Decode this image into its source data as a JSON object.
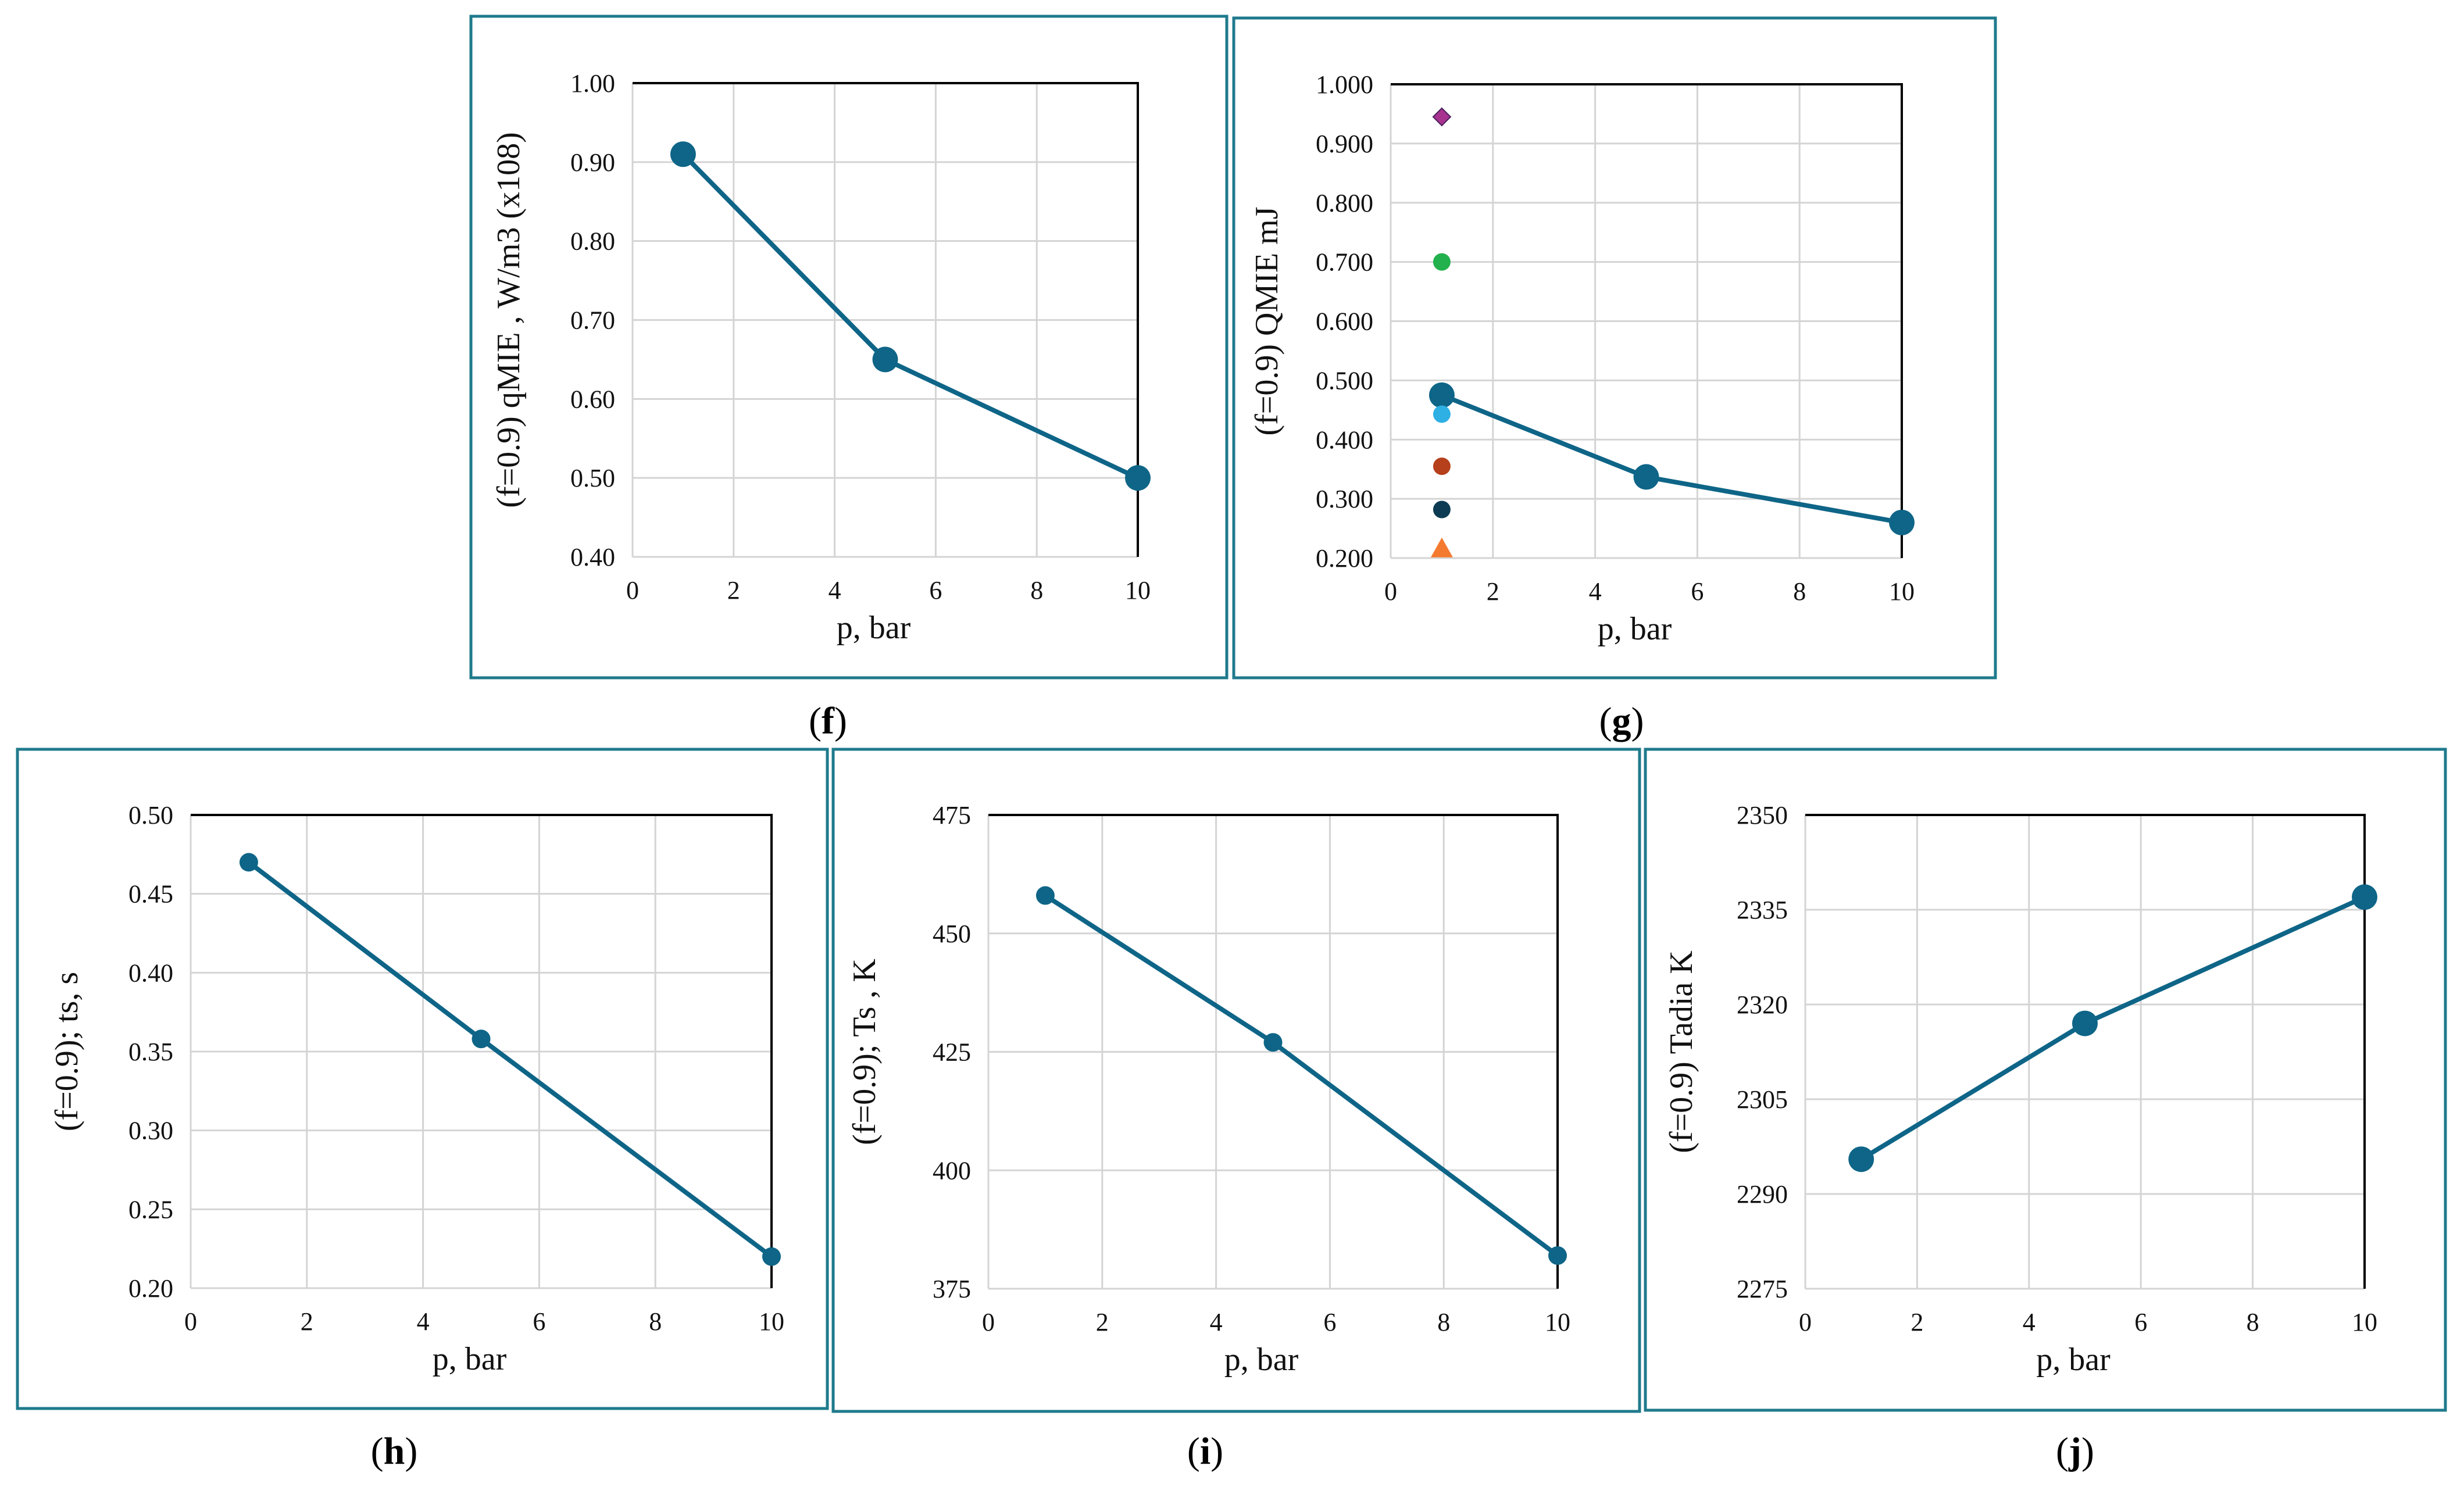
{
  "figure": {
    "series_color": "#0e6587",
    "frame_color": "#1f7a8c"
  },
  "chart_data": [
    {
      "id": "f",
      "type": "line",
      "tag": "f",
      "title": "",
      "xlabel": "p, bar",
      "ylabel": "(f=0.9) qMIE , W/m3 (x108)",
      "xlim": [
        0,
        10
      ],
      "ylim": [
        0.4,
        1.0
      ],
      "xticks": [
        0,
        2,
        4,
        6,
        8,
        10
      ],
      "xtick_labels": [
        "0",
        "2",
        "4",
        "6",
        "8",
        "10"
      ],
      "yticks": [
        0.4,
        0.5,
        0.6,
        0.7,
        0.8,
        0.9,
        1.0
      ],
      "ytick_labels": [
        "0.40",
        "0.50",
        "0.60",
        "0.70",
        "0.80",
        "0.90",
        "1.00"
      ],
      "series": [
        {
          "name": "f=0.9",
          "x": [
            1,
            5,
            10
          ],
          "y": [
            0.91,
            0.65,
            0.5
          ]
        }
      ],
      "extra_points": []
    },
    {
      "id": "g",
      "type": "line",
      "tag": "g",
      "title": "",
      "xlabel": "p, bar",
      "ylabel": "(f=0.9) QMIE  mJ",
      "xlim": [
        0,
        10
      ],
      "ylim": [
        0.2,
        1.0
      ],
      "xticks": [
        0,
        2,
        4,
        6,
        8,
        10
      ],
      "xtick_labels": [
        "0",
        "2",
        "4",
        "6",
        "8",
        "10"
      ],
      "yticks": [
        0.2,
        0.3,
        0.4,
        0.5,
        0.6,
        0.7,
        0.8,
        0.9,
        1.0
      ],
      "ytick_labels": [
        "0.200",
        "0.300",
        "0.400",
        "0.500",
        "0.600",
        "0.700",
        "0.800",
        "0.900",
        "1.000"
      ],
      "series": [
        {
          "name": "f=0.9",
          "x": [
            1,
            5,
            10
          ],
          "y": [
            0.475,
            0.337,
            0.26
          ]
        }
      ],
      "extra_points": [
        {
          "x": 1,
          "y": 0.945,
          "marker": "diamond",
          "color": "#a8328f"
        },
        {
          "x": 1,
          "y": 0.7,
          "marker": "circle",
          "color": "#22b14c"
        },
        {
          "x": 1,
          "y": 0.443,
          "marker": "circle",
          "color": "#2eb0e4"
        },
        {
          "x": 1,
          "y": 0.355,
          "marker": "circle",
          "color": "#b5401b"
        },
        {
          "x": 1,
          "y": 0.282,
          "marker": "circle",
          "color": "#0d3b53"
        },
        {
          "x": 1,
          "y": 0.215,
          "marker": "triangle",
          "color": "#f47a30"
        }
      ]
    },
    {
      "id": "h",
      "type": "line",
      "tag": "h",
      "title": "",
      "xlabel": "p, bar",
      "ylabel": "(f=0.9); ts, s",
      "xlim": [
        0,
        10
      ],
      "ylim": [
        0.2,
        0.5
      ],
      "xticks": [
        0,
        2,
        4,
        6,
        8,
        10
      ],
      "xtick_labels": [
        "0",
        "2",
        "4",
        "6",
        "8",
        "10"
      ],
      "yticks": [
        0.2,
        0.25,
        0.3,
        0.35,
        0.4,
        0.45,
        0.5
      ],
      "ytick_labels": [
        "0.20",
        "0.25",
        "0.30",
        "0.35",
        "0.40",
        "0.45",
        "0.50"
      ],
      "series": [
        {
          "name": "f=0.9",
          "x": [
            1,
            5,
            10
          ],
          "y": [
            0.47,
            0.358,
            0.22
          ]
        }
      ],
      "extra_points": []
    },
    {
      "id": "i",
      "type": "line",
      "tag": "i",
      "title": "",
      "xlabel": "p, bar",
      "ylabel": "(f=0.9);  Ts , K",
      "xlim": [
        0,
        10
      ],
      "ylim": [
        375,
        475
      ],
      "xticks": [
        0,
        2,
        4,
        6,
        8,
        10
      ],
      "xtick_labels": [
        "0",
        "2",
        "4",
        "6",
        "8",
        "10"
      ],
      "yticks": [
        375,
        400,
        425,
        450,
        475
      ],
      "ytick_labels": [
        "375",
        "400",
        "425",
        "450",
        "475"
      ],
      "series": [
        {
          "name": "f=0.9",
          "x": [
            1,
            5,
            10
          ],
          "y": [
            458,
            427,
            382
          ]
        }
      ],
      "extra_points": []
    },
    {
      "id": "j",
      "type": "line",
      "tag": "j",
      "title": "",
      "xlabel": "p, bar",
      "ylabel": "(f=0.9) Tadia K",
      "xlim": [
        0,
        10
      ],
      "ylim": [
        2275,
        2350
      ],
      "xticks": [
        0,
        2,
        4,
        6,
        8,
        10
      ],
      "xtick_labels": [
        "0",
        "2",
        "4",
        "6",
        "8",
        "10"
      ],
      "yticks": [
        2275,
        2290,
        2305,
        2320,
        2335,
        2350
      ],
      "ytick_labels": [
        "2275",
        "2290",
        "2305",
        "2320",
        "2335",
        "2350"
      ],
      "series": [
        {
          "name": "f=0.9",
          "x": [
            1,
            5,
            10
          ],
          "y": [
            2295.5,
            2317.0,
            2337.0
          ]
        }
      ],
      "extra_points": []
    }
  ]
}
